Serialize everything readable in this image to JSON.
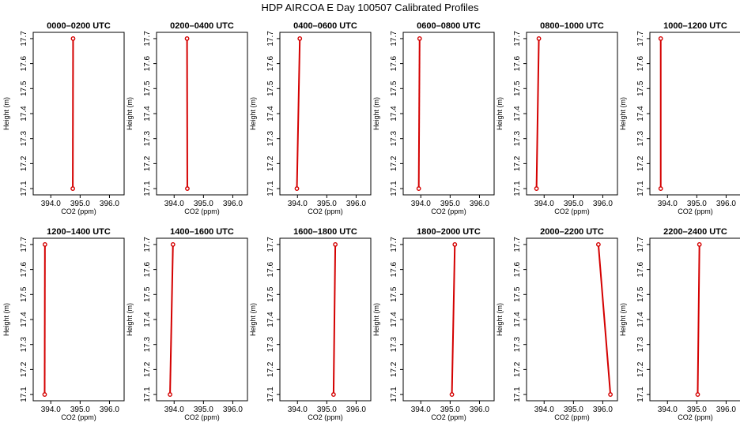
{
  "title": "HDP AIRCOA E  Day 100507  Calibrated Profiles",
  "colors": {
    "profile": "#d40000",
    "frame": "#000000"
  },
  "chart_data": {
    "type": "line",
    "xlabel": "CO2 (ppm)",
    "ylabel": "Height (m)",
    "xlim": [
      393.4,
      396.5
    ],
    "ylim": [
      17.075,
      17.725
    ],
    "xticks": [
      394.0,
      395.0,
      396.0
    ],
    "xtick_labels": [
      "394.0",
      "395.0",
      "396.0"
    ],
    "yticks": [
      17.1,
      17.2,
      17.3,
      17.4,
      17.5,
      17.6,
      17.7
    ],
    "ytick_labels": [
      "17.1",
      "17.2",
      "17.3",
      "17.4",
      "17.5",
      "17.6",
      "17.7"
    ],
    "panels": [
      {
        "title": "0000–0200 UTC",
        "points": [
          {
            "co2": 394.75,
            "height": 17.1
          },
          {
            "co2": 394.76,
            "height": 17.7
          }
        ]
      },
      {
        "title": "0200–0400 UTC",
        "points": [
          {
            "co2": 394.45,
            "height": 17.1
          },
          {
            "co2": 394.44,
            "height": 17.7
          }
        ]
      },
      {
        "title": "0400–0600 UTC",
        "points": [
          {
            "co2": 393.98,
            "height": 17.1
          },
          {
            "co2": 394.08,
            "height": 17.7
          }
        ]
      },
      {
        "title": "0600–0800 UTC",
        "points": [
          {
            "co2": 393.93,
            "height": 17.1
          },
          {
            "co2": 393.96,
            "height": 17.7
          }
        ]
      },
      {
        "title": "0800–1000 UTC",
        "points": [
          {
            "co2": 393.74,
            "height": 17.1
          },
          {
            "co2": 393.82,
            "height": 17.7
          }
        ]
      },
      {
        "title": "1000–1200 UTC",
        "points": [
          {
            "co2": 393.77,
            "height": 17.1
          },
          {
            "co2": 393.77,
            "height": 17.7
          }
        ]
      },
      {
        "title": "1200–1400 UTC",
        "points": [
          {
            "co2": 393.79,
            "height": 17.1
          },
          {
            "co2": 393.8,
            "height": 17.7
          }
        ]
      },
      {
        "title": "1400–1600 UTC",
        "points": [
          {
            "co2": 393.86,
            "height": 17.1
          },
          {
            "co2": 393.96,
            "height": 17.7
          }
        ]
      },
      {
        "title": "1600–1800 UTC",
        "points": [
          {
            "co2": 395.23,
            "height": 17.1
          },
          {
            "co2": 395.29,
            "height": 17.7
          }
        ]
      },
      {
        "title": "1800–2000 UTC",
        "points": [
          {
            "co2": 395.06,
            "height": 17.1
          },
          {
            "co2": 395.16,
            "height": 17.7
          }
        ]
      },
      {
        "title": "2000–2200 UTC",
        "points": [
          {
            "co2": 396.26,
            "height": 17.1
          },
          {
            "co2": 395.85,
            "height": 17.7
          }
        ]
      },
      {
        "title": "2200–2400 UTC",
        "points": [
          {
            "co2": 395.03,
            "height": 17.1
          },
          {
            "co2": 395.09,
            "height": 17.7
          }
        ]
      }
    ]
  }
}
